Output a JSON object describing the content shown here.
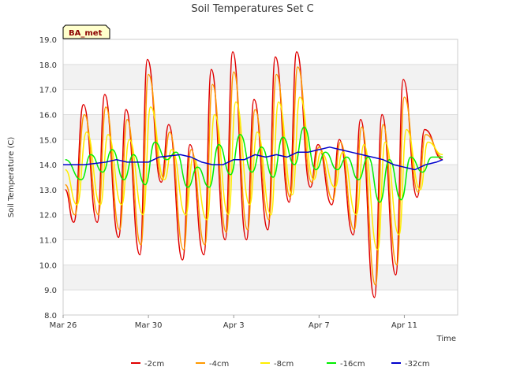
{
  "chart_data": {
    "type": "line",
    "title": "Soil Temperatures Set C",
    "xlabel": "Time",
    "ylabel": "Soil Temperature (C)",
    "ylim": [
      8.0,
      19.0
    ],
    "xlim_days": [
      0,
      18.5
    ],
    "yticks": [
      "8.0",
      "9.0",
      "10.0",
      "11.0",
      "12.0",
      "13.0",
      "14.0",
      "15.0",
      "16.0",
      "17.0",
      "18.0",
      "19.0"
    ],
    "xticks": [
      {
        "day": 0,
        "label": "Mar 26"
      },
      {
        "day": 4,
        "label": "Mar 30"
      },
      {
        "day": 8,
        "label": "Apr 3"
      },
      {
        "day": 12,
        "label": "Apr 7"
      },
      {
        "day": 16,
        "label": "Apr 11"
      }
    ],
    "badge": "BA_met",
    "grid": "horizontal bands",
    "legend_position": "bottom",
    "series": [
      {
        "name": "-2cm",
        "color": "#e00000",
        "mins": [
          [
            0.5,
            11.7
          ],
          [
            1.6,
            11.7
          ],
          [
            2.6,
            11.1
          ],
          [
            3.6,
            10.4
          ],
          [
            4.6,
            13.3
          ],
          [
            5.6,
            10.2
          ],
          [
            6.6,
            10.4
          ],
          [
            7.6,
            11.0
          ],
          [
            8.6,
            11.0
          ],
          [
            9.6,
            11.4
          ],
          [
            10.6,
            12.5
          ],
          [
            11.6,
            13.1
          ],
          [
            12.6,
            12.4
          ],
          [
            13.6,
            11.2
          ],
          [
            14.6,
            8.7
          ],
          [
            15.6,
            9.6
          ],
          [
            16.6,
            12.7
          ]
        ],
        "maxs": [
          [
            0.95,
            16.4
          ],
          [
            1.95,
            16.8
          ],
          [
            2.95,
            16.2
          ],
          [
            3.95,
            18.2
          ],
          [
            4.95,
            15.6
          ],
          [
            5.95,
            14.8
          ],
          [
            6.95,
            17.8
          ],
          [
            7.95,
            18.5
          ],
          [
            8.95,
            16.6
          ],
          [
            9.95,
            18.3
          ],
          [
            10.95,
            18.5
          ],
          [
            11.95,
            14.8
          ],
          [
            12.95,
            15.0
          ],
          [
            13.95,
            15.8
          ],
          [
            14.95,
            16.0
          ],
          [
            15.95,
            17.4
          ],
          [
            16.95,
            15.4
          ]
        ],
        "start": 13.0,
        "end": 14.2
      },
      {
        "name": "-4cm",
        "color": "#ff9900",
        "mins": [
          [
            0.55,
            12.0
          ],
          [
            1.65,
            12.0
          ],
          [
            2.65,
            11.4
          ],
          [
            3.65,
            10.8
          ],
          [
            4.65,
            13.4
          ],
          [
            5.65,
            10.6
          ],
          [
            6.65,
            10.8
          ],
          [
            7.65,
            11.3
          ],
          [
            8.65,
            11.4
          ],
          [
            9.65,
            11.8
          ],
          [
            10.65,
            12.7
          ],
          [
            11.65,
            13.3
          ],
          [
            12.65,
            12.6
          ],
          [
            13.65,
            11.4
          ],
          [
            14.65,
            9.2
          ],
          [
            15.65,
            10.0
          ],
          [
            16.65,
            12.9
          ]
        ],
        "maxs": [
          [
            1.0,
            16.0
          ],
          [
            2.0,
            16.3
          ],
          [
            3.0,
            15.8
          ],
          [
            4.0,
            17.6
          ],
          [
            5.0,
            15.3
          ],
          [
            6.0,
            14.6
          ],
          [
            7.0,
            17.2
          ],
          [
            8.0,
            17.7
          ],
          [
            9.0,
            16.2
          ],
          [
            10.0,
            17.6
          ],
          [
            11.0,
            17.9
          ],
          [
            12.0,
            14.7
          ],
          [
            13.0,
            14.9
          ],
          [
            14.0,
            15.5
          ],
          [
            15.0,
            15.6
          ],
          [
            16.0,
            16.7
          ],
          [
            17.0,
            15.2
          ]
        ],
        "start": 13.2,
        "end": 14.3
      },
      {
        "name": "-8cm",
        "color": "#ffee00",
        "mins": [
          [
            0.65,
            12.4
          ],
          [
            1.75,
            12.4
          ],
          [
            2.75,
            12.4
          ],
          [
            3.75,
            12.0
          ],
          [
            4.75,
            13.4
          ],
          [
            5.75,
            12.0
          ],
          [
            6.75,
            11.8
          ],
          [
            7.75,
            12.0
          ],
          [
            8.75,
            12.4
          ],
          [
            9.75,
            12.0
          ],
          [
            10.75,
            12.8
          ],
          [
            11.75,
            13.4
          ],
          [
            12.75,
            13.1
          ],
          [
            13.75,
            12.0
          ],
          [
            14.75,
            10.6
          ],
          [
            15.75,
            11.2
          ],
          [
            16.75,
            13.0
          ]
        ],
        "maxs": [
          [
            1.1,
            15.3
          ],
          [
            2.1,
            15.2
          ],
          [
            3.1,
            15.0
          ],
          [
            4.1,
            16.3
          ],
          [
            5.1,
            14.6
          ],
          [
            6.1,
            14.3
          ],
          [
            7.1,
            16.0
          ],
          [
            8.1,
            16.5
          ],
          [
            9.1,
            15.3
          ],
          [
            10.1,
            16.5
          ],
          [
            11.1,
            16.7
          ],
          [
            12.1,
            14.5
          ],
          [
            13.1,
            14.5
          ],
          [
            14.1,
            14.8
          ],
          [
            15.1,
            14.9
          ],
          [
            16.1,
            15.4
          ],
          [
            17.1,
            14.9
          ]
        ],
        "start": 13.8,
        "end": 14.4
      },
      {
        "name": "-16cm",
        "color": "#00ee00",
        "mins": [
          [
            0.85,
            13.4
          ],
          [
            1.85,
            13.7
          ],
          [
            2.85,
            13.4
          ],
          [
            3.85,
            13.2
          ],
          [
            4.85,
            14.2
          ],
          [
            5.85,
            13.1
          ],
          [
            6.85,
            13.1
          ],
          [
            7.85,
            13.6
          ],
          [
            8.85,
            13.7
          ],
          [
            9.85,
            13.5
          ],
          [
            10.85,
            14.0
          ],
          [
            11.85,
            13.8
          ],
          [
            12.85,
            13.8
          ],
          [
            13.85,
            13.4
          ],
          [
            14.85,
            12.5
          ],
          [
            15.85,
            12.6
          ],
          [
            16.85,
            13.7
          ]
        ],
        "maxs": [
          [
            1.3,
            14.4
          ],
          [
            2.3,
            14.6
          ],
          [
            3.3,
            14.4
          ],
          [
            4.3,
            14.9
          ],
          [
            5.3,
            14.5
          ],
          [
            6.3,
            13.9
          ],
          [
            7.3,
            14.8
          ],
          [
            8.3,
            15.2
          ],
          [
            9.3,
            14.7
          ],
          [
            10.3,
            15.1
          ],
          [
            11.3,
            15.5
          ],
          [
            12.3,
            14.5
          ],
          [
            13.3,
            14.3
          ],
          [
            14.3,
            14.3
          ],
          [
            15.3,
            14.2
          ],
          [
            16.3,
            14.3
          ],
          [
            17.3,
            14.3
          ]
        ],
        "start": 14.2,
        "end": 14.3
      },
      {
        "name": "-32cm",
        "color": "#0000cc",
        "path": [
          [
            0,
            14.0
          ],
          [
            1,
            14.0
          ],
          [
            2,
            14.1
          ],
          [
            2.5,
            14.2
          ],
          [
            3,
            14.1
          ],
          [
            3.5,
            14.1
          ],
          [
            4,
            14.1
          ],
          [
            4.5,
            14.3
          ],
          [
            5.5,
            14.4
          ],
          [
            6,
            14.3
          ],
          [
            6.5,
            14.1
          ],
          [
            7,
            14.0
          ],
          [
            7.5,
            14.0
          ],
          [
            8,
            14.2
          ],
          [
            8.5,
            14.2
          ],
          [
            9,
            14.4
          ],
          [
            9.5,
            14.3
          ],
          [
            10,
            14.4
          ],
          [
            10.5,
            14.3
          ],
          [
            11,
            14.5
          ],
          [
            11.5,
            14.5
          ],
          [
            12,
            14.6
          ],
          [
            12.5,
            14.7
          ],
          [
            13,
            14.6
          ],
          [
            13.5,
            14.5
          ],
          [
            14,
            14.4
          ],
          [
            14.5,
            14.3
          ],
          [
            15,
            14.2
          ],
          [
            15.5,
            14.0
          ],
          [
            16,
            13.9
          ],
          [
            16.5,
            13.8
          ],
          [
            17,
            14.0
          ],
          [
            17.5,
            14.1
          ],
          [
            17.8,
            14.2
          ]
        ]
      }
    ]
  }
}
